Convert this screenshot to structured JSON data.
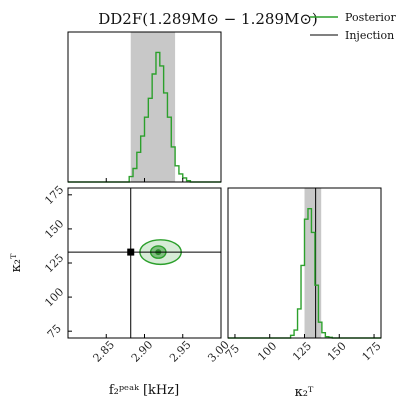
{
  "chart_data": {
    "type": "corner",
    "title": "DD2F(1.289M⊙ − 1.289M⊙)",
    "legend": {
      "placement": "top-right",
      "entries": [
        {
          "label": "Posterior",
          "color": "#2ca02c"
        },
        {
          "label": "Injection",
          "color": "#000000"
        }
      ]
    },
    "xlabel_main": "f₂ᵖᵉᵃᵏ [kHz]",
    "xlabel_kappa": "κ₂ᵀ",
    "ylabel_kappa": "κ₂ᵀ",
    "f_axis": {
      "range": [
        2.8,
        3.0
      ],
      "ticks": [
        "2.85",
        "2.90",
        "2.95",
        "3.00"
      ],
      "tick_values": [
        2.85,
        2.9,
        2.95,
        3.0
      ]
    },
    "kappa_axis": {
      "range": [
        70,
        180
      ],
      "ticks": [
        "75",
        "100",
        "125",
        "150",
        "175"
      ],
      "tick_values": [
        75,
        100,
        125,
        150,
        175
      ]
    },
    "injection": {
      "f": 2.882,
      "kappa": 133
    },
    "f_credible_band": [
      2.882,
      2.94
    ],
    "kappa_credible_band": [
      125,
      137
    ],
    "f_histogram": {
      "bin_edges": [
        2.88,
        2.885,
        2.89,
        2.895,
        2.9,
        2.905,
        2.91,
        2.915,
        2.92,
        2.925,
        2.93,
        2.935,
        2.94,
        2.945,
        2.95,
        2.955,
        2.96
      ],
      "counts": [
        0.04,
        0.1,
        0.22,
        0.34,
        0.48,
        0.62,
        0.8,
        0.96,
        0.86,
        0.66,
        0.48,
        0.26,
        0.12,
        0.06,
        0.03,
        0.01
      ]
    },
    "kappa_histogram": {
      "bin_edges": [
        115,
        117.5,
        120,
        122.5,
        125,
        127.5,
        130,
        132.5,
        135,
        137.5,
        140,
        142.5,
        145
      ],
      "counts": [
        0.02,
        0.06,
        0.22,
        0.55,
        0.9,
        0.98,
        0.8,
        0.4,
        0.12,
        0.04,
        0.01,
        0.005
      ]
    },
    "contours": [
      {
        "level": "inner",
        "cf": 2.918,
        "ck": 133,
        "rf": 0.01,
        "rk": 4.5,
        "fill": "#7fbf7f"
      },
      {
        "level": "outer",
        "cf": 2.921,
        "ck": 133,
        "rf": 0.027,
        "rk": 9,
        "fill": "#d7ecd7"
      }
    ],
    "grid": false
  }
}
